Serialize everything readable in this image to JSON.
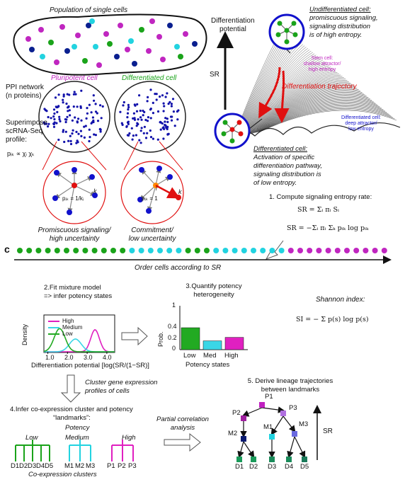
{
  "panel_b": {
    "population_title": "Population of single cells",
    "ppi_label": "PPI network",
    "ppi_sub": "(n proteins)",
    "superimpose_1": "Superimpose",
    "superimpose_2": "scRNA-Seq",
    "superimpose_3": "profile:",
    "formula_pik": "pᵢₖ ∝ χᵢ χₖ",
    "pluripotent_label": "Pluripotent cell",
    "differentiated_label": "Differentiated cell",
    "pik_eq_1": "pᵢₖ = 1/kᵢ",
    "pik_eq_2": "pᵢₖ = 1",
    "node_k": "k",
    "node_i": "i",
    "promiscuous_1": "Promiscuous signaling/",
    "promiscuous_2": "high uncertainty",
    "commitment_1": "Commitment/",
    "commitment_2": "low uncertainty",
    "diff_potential_1": "Differentiation",
    "diff_potential_2": "potential",
    "sr_axis": "SR",
    "undiff_title": "Undifferentiated cell:",
    "undiff_1": "promiscuous signaling,",
    "undiff_2": "signaling distribution",
    "undiff_3": "is of high entropy.",
    "stem_1": "Stem cell:",
    "stem_2": "shallow attractor/",
    "stem_3": "high entropy",
    "trajectory": "Differentiation trajectory",
    "diffcell_1": "Differentiated cell:",
    "diffcell_2": "deep attractor/",
    "diffcell_3": "low entropy",
    "diffcell_title": "Differentiated cell:",
    "diffcell_b1": "Activation of specific",
    "diffcell_b2": "differentiation pathway,",
    "diffcell_b3": "signaling distribution is",
    "diffcell_b4": "of low entropy.",
    "step1": "1. Compute signaling entropy rate:",
    "sr_formula_1": "SR = Σᵢ πᵢ Sᵢ",
    "sr_formula_2": "SR = −Σᵢ πᵢ Σₖ pᵢₖ log pᵢₖ",
    "colors": {
      "magenta": "#c026c0",
      "green": "#1aa31a",
      "cyan": "#22d3e0",
      "navy": "#0a1f8f",
      "red": "#e01010",
      "blue_ring": "#1111cc"
    }
  },
  "panel_c": {
    "label": "c",
    "order_caption": "Order cells according to SR",
    "step2_1": "2.Fit mixture model",
    "step2_2": "=> infer potency states",
    "step3_1": "3.Quantify potency",
    "step3_2": "heterogeneity",
    "shannon_title": "Shannon index:",
    "shannon_formula": "SI = − Σ p(s) log p(s)",
    "cluster_1": "Cluster gene expression",
    "cluster_2": "profiles of cells",
    "step4_1": "4.Infer co-expression cluster and potency",
    "step4_2": "“landmarks”:",
    "potency": "Potency",
    "low": "Low",
    "medium": "Medium",
    "high": "High",
    "leaves_low": [
      "D1",
      "D2",
      "D3",
      "D4",
      "D5"
    ],
    "leaves_med": [
      "M1",
      "M2",
      "M3"
    ],
    "leaves_high": [
      "P1",
      "P2",
      "P3"
    ],
    "coexp": "Co-expression clusters",
    "partial_1": "Partial correlation",
    "partial_2": "analysis",
    "step5_1": "5. Derive lineage trajectories",
    "step5_2": "between landmarks",
    "sr_label": "SR",
    "lineage_nodes": [
      "P1",
      "P2",
      "P3",
      "M1",
      "M2",
      "M3",
      "D1",
      "D2",
      "D3",
      "D4",
      "D5"
    ]
  },
  "chart_data": [
    {
      "type": "area",
      "title": "",
      "xlabel": "Differentiation potential [log(SR/(1−SR)]",
      "ylabel": "Density",
      "xlim": [
        0.8,
        4.4
      ],
      "x_ticks": [
        "1.0",
        "2.0",
        "3.0",
        "4.0"
      ],
      "legend": "top-left",
      "series": [
        {
          "name": "High",
          "color": "#e020c0",
          "mean": 3.4,
          "sd": 0.22,
          "peak": 0.78
        },
        {
          "name": "Medium",
          "color": "#3ad6e6",
          "mean": 2.4,
          "sd": 0.3,
          "peak": 0.45
        },
        {
          "name": "Low",
          "color": "#22aa22",
          "mean": 1.6,
          "sd": 0.28,
          "peak": 0.82
        }
      ]
    },
    {
      "type": "bar",
      "title": "",
      "xlabel": "Potency states",
      "ylabel": "Prob.",
      "ylim": [
        0,
        1
      ],
      "y_ticks": [
        "0",
        "0.2",
        "0.4",
        "1"
      ],
      "categories": [
        "Low",
        "Med",
        "High"
      ],
      "values": [
        0.5,
        0.2,
        0.28
      ],
      "colors": [
        "#22aa22",
        "#3ad6e6",
        "#e020c0"
      ]
    }
  ]
}
